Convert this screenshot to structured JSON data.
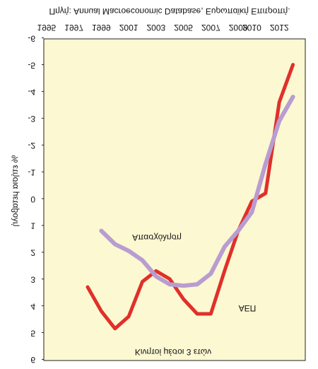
{
  "chart_data": {
    "type": "line",
    "subtitle": "Κινητοί μέσοι 3 ετών",
    "source": "Πηγή: Annual Macroeconomic Database, Ευρωπαϊκή Επιτροπή.",
    "y_label": "% ετήσια μεταβολή",
    "xlim": [
      1994.8,
      2013.9
    ],
    "xticks": [
      1995,
      1997,
      1999,
      2001,
      2003,
      2005,
      2007,
      2009,
      2010,
      2012
    ],
    "ylim": [
      -6,
      6
    ],
    "yticks": [
      -6,
      -5,
      -4,
      -3,
      -2,
      -1,
      0,
      1,
      2,
      3,
      4,
      5,
      6
    ],
    "series": [
      {
        "name": "ΑΕΠ",
        "color": "#e0302a",
        "x": [
          1998,
          1999,
          2000,
          2001,
          2002,
          2003,
          2004,
          2005,
          2006,
          2007,
          2008,
          2009,
          2010,
          2011,
          2012,
          2013
        ],
        "values": [
          3.3,
          4.2,
          4.85,
          4.4,
          3.1,
          2.7,
          3.0,
          3.75,
          4.3,
          4.3,
          2.7,
          1.2,
          0.1,
          -0.2,
          -3.6,
          -5.0
        ]
      },
      {
        "name": "Απασχόληση",
        "color": "#b99cd0",
        "x": [
          1999,
          2000,
          2001,
          2002,
          2003,
          2004,
          2005,
          2006,
          2007,
          2008,
          2009,
          2010,
          2011,
          2012,
          2013
        ],
        "values": [
          1.2,
          1.7,
          1.95,
          2.3,
          2.9,
          3.2,
          3.25,
          3.2,
          2.8,
          1.8,
          1.2,
          0.5,
          -1.3,
          -2.9,
          -3.8
        ]
      }
    ]
  }
}
